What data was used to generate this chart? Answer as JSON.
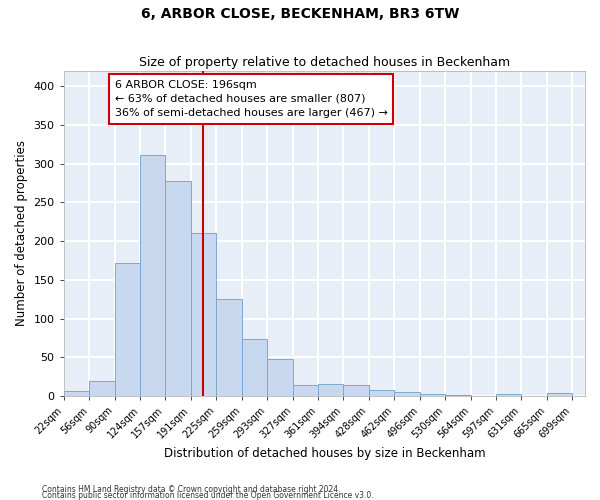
{
  "title": "6, ARBOR CLOSE, BECKENHAM, BR3 6TW",
  "subtitle": "Size of property relative to detached houses in Beckenham",
  "xlabel": "Distribution of detached houses by size in Beckenham",
  "ylabel": "Number of detached properties",
  "bar_fill_color": "#c8d8ee",
  "bar_edge_color": "#7aaad0",
  "background_color": "#e8eef8",
  "grid_color": "#ffffff",
  "vline_color": "#cc0000",
  "bins": [
    22,
    56,
    90,
    124,
    157,
    191,
    225,
    259,
    293,
    327,
    361,
    394,
    428,
    462,
    496,
    530,
    564,
    597,
    631,
    665,
    699,
    733
  ],
  "bin_labels": [
    "22sqm",
    "56sqm",
    "90sqm",
    "124sqm",
    "157sqm",
    "191sqm",
    "225sqm",
    "259sqm",
    "293sqm",
    "327sqm",
    "361sqm",
    "394sqm",
    "428sqm",
    "462sqm",
    "496sqm",
    "530sqm",
    "564sqm",
    "597sqm",
    "631sqm",
    "665sqm",
    "699sqm"
  ],
  "values": [
    7,
    20,
    172,
    311,
    277,
    210,
    125,
    73,
    48,
    14,
    16,
    14,
    8,
    5,
    3,
    1,
    0,
    3,
    0,
    4,
    0
  ],
  "vline_x": 208,
  "ylim": [
    0,
    420
  ],
  "yticks": [
    0,
    50,
    100,
    150,
    200,
    250,
    300,
    350,
    400
  ],
  "annotation_line1": "6 ARBOR CLOSE: 196sqm",
  "annotation_line2": "← 63% of detached houses are smaller (807)",
  "annotation_line3": "36% of semi-detached houses are larger (467) →",
  "annotation_box_color": "white",
  "annotation_box_edge_color": "#cc0000",
  "footer1": "Contains HM Land Registry data © Crown copyright and database right 2024.",
  "footer2": "Contains public sector information licensed under the Open Government Licence v3.0."
}
